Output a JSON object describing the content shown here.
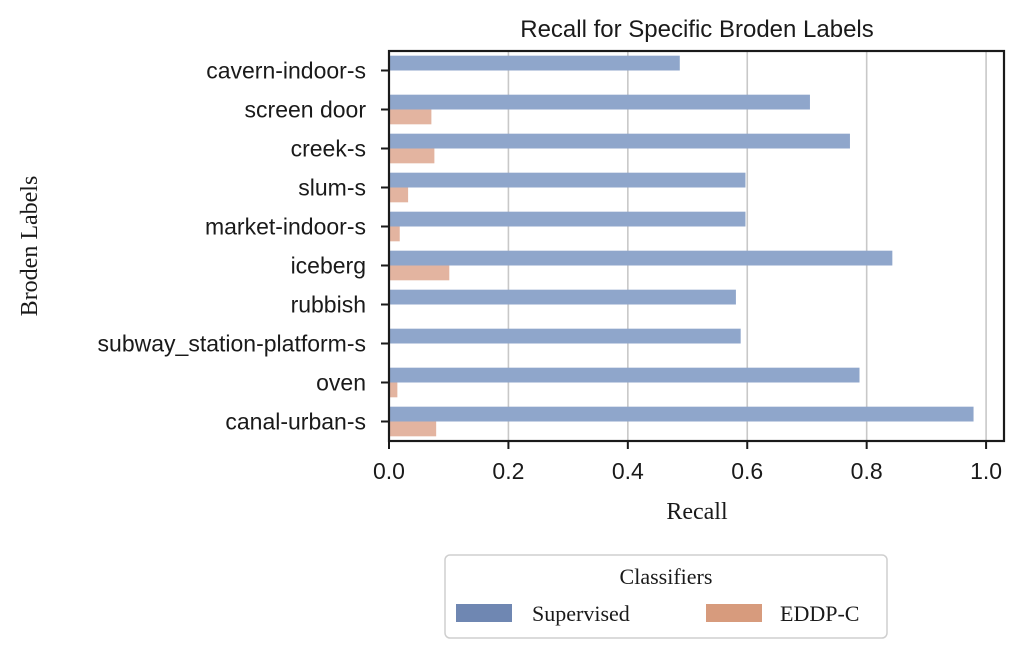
{
  "chart_data": {
    "type": "bar",
    "orientation": "horizontal",
    "title": "Recall for Specific Broden Labels",
    "xlabel": "Recall",
    "ylabel": "Broden Labels",
    "xlim": [
      0,
      1.03
    ],
    "xticks": [
      0.0,
      0.2,
      0.4,
      0.6,
      0.8,
      1.0
    ],
    "xtick_labels": [
      "0.0",
      "0.2",
      "0.4",
      "0.6",
      "0.8",
      "1.0"
    ],
    "grid": "vertical",
    "categories": [
      "cavern-indoor-s",
      "screen door",
      "creek-s",
      "slum-s",
      "market-indoor-s",
      "iceberg",
      "rubbish",
      "subway_station-platform-s",
      "oven",
      "canal-urban-s"
    ],
    "series": [
      {
        "name": "Supervised",
        "color": "#8fa6cb",
        "legend_color": "#6f87b2",
        "values": [
          0.487,
          0.705,
          0.772,
          0.597,
          0.597,
          0.843,
          0.581,
          0.589,
          0.788,
          0.979
        ]
      },
      {
        "name": "EDDP-C",
        "color": "#e3b4a0",
        "legend_color": "#d79b7d",
        "values": [
          0.0,
          0.071,
          0.076,
          0.032,
          0.018,
          0.101,
          0.0,
          0.0,
          0.014,
          0.079
        ]
      }
    ],
    "legend": {
      "title": "Classifiers",
      "placement": "bottom-center"
    }
  }
}
